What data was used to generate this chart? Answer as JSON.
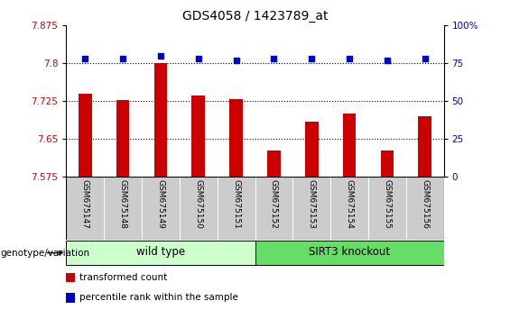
{
  "title": "GDS4058 / 1423789_at",
  "samples": [
    "GSM675147",
    "GSM675148",
    "GSM675149",
    "GSM675150",
    "GSM675151",
    "GSM675152",
    "GSM675153",
    "GSM675154",
    "GSM675155",
    "GSM675156"
  ],
  "transformed_counts": [
    7.74,
    7.727,
    7.8,
    7.736,
    7.729,
    7.628,
    7.685,
    7.7,
    7.628,
    7.695
  ],
  "percentile_ranks": [
    78,
    78,
    80,
    78,
    77,
    78,
    78,
    78,
    77,
    78
  ],
  "ylim_left": [
    7.575,
    7.875
  ],
  "ylim_right": [
    0,
    100
  ],
  "yticks_left": [
    7.575,
    7.65,
    7.725,
    7.8,
    7.875
  ],
  "yticks_right": [
    0,
    25,
    50,
    75,
    100
  ],
  "bar_color": "#cc0000",
  "dot_color": "#0000cc",
  "groups": [
    {
      "label": "wild type",
      "start": 0,
      "end": 4,
      "color": "#ccffcc"
    },
    {
      "label": "SIRT3 knockout",
      "start": 5,
      "end": 9,
      "color": "#66dd66"
    }
  ],
  "group_row_label": "genotype/variation",
  "legend_items": [
    {
      "label": "transformed count",
      "color": "#cc0000"
    },
    {
      "label": "percentile rank within the sample",
      "color": "#0000cc"
    }
  ],
  "dotted_line_values": [
    7.8,
    7.725,
    7.65
  ],
  "bg_color": "#ffffff",
  "tick_label_area_color": "#cccccc"
}
